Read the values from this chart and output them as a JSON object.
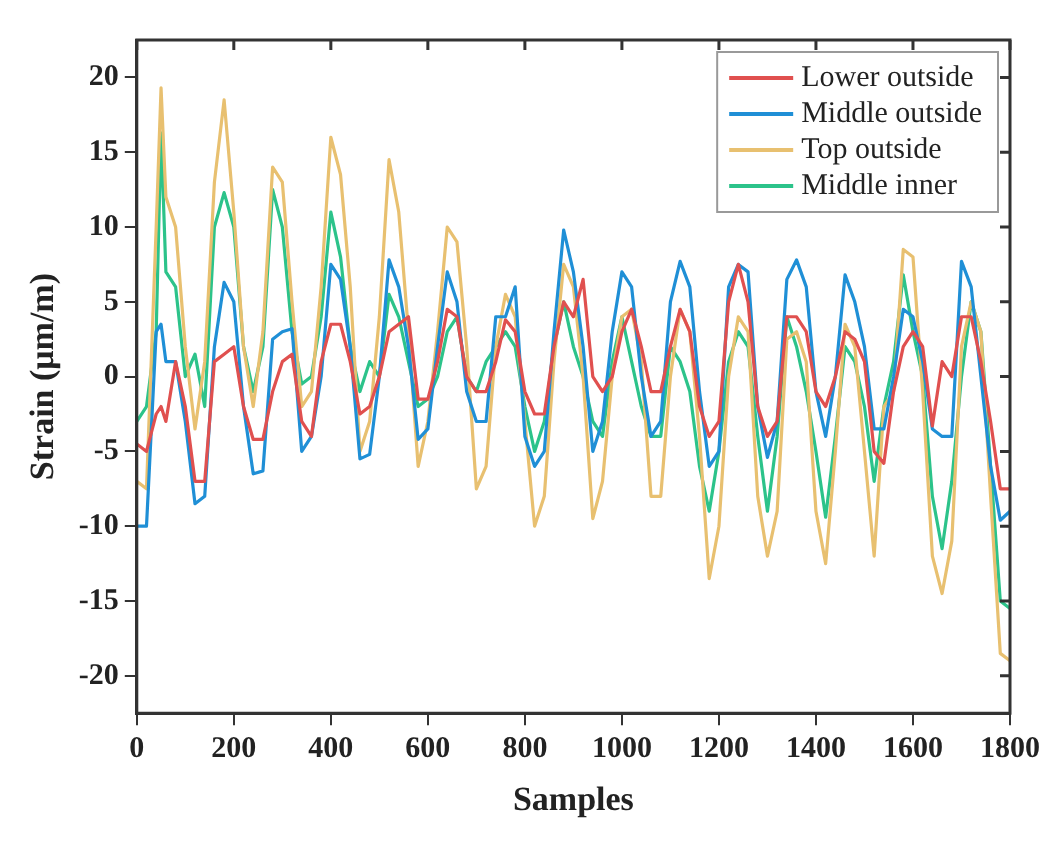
{
  "chart_data": {
    "type": "line",
    "xlabel": "Samples",
    "ylabel": "Strain (μm/m)",
    "x": [
      0,
      20,
      40,
      50,
      60,
      80,
      100,
      120,
      140,
      160,
      180,
      200,
      220,
      240,
      260,
      280,
      300,
      320,
      340,
      360,
      380,
      400,
      420,
      440,
      460,
      480,
      500,
      520,
      540,
      560,
      580,
      600,
      620,
      640,
      660,
      680,
      700,
      720,
      740,
      760,
      780,
      800,
      820,
      840,
      860,
      880,
      900,
      920,
      940,
      960,
      980,
      1000,
      1020,
      1040,
      1060,
      1080,
      1100,
      1120,
      1140,
      1160,
      1180,
      1200,
      1220,
      1240,
      1260,
      1280,
      1300,
      1320,
      1340,
      1360,
      1380,
      1400,
      1420,
      1440,
      1460,
      1480,
      1500,
      1520,
      1540,
      1560,
      1580,
      1600,
      1620,
      1640,
      1660,
      1680,
      1700,
      1720,
      1740,
      1760,
      1780,
      1800
    ],
    "series": [
      {
        "name": "Lower outside",
        "color": "#e0504f",
        "values": [
          -4.5,
          -5,
          -2.5,
          -2,
          -3,
          1,
          -2,
          -7,
          -7,
          1,
          1.5,
          2,
          -2,
          -4.2,
          -4.2,
          -1,
          1,
          1.5,
          -3,
          -4,
          1,
          3.5,
          3.5,
          1,
          -2.5,
          -2,
          0,
          3,
          3.5,
          4,
          -1.5,
          -1.5,
          1,
          4.5,
          4,
          0,
          -1,
          -1,
          1,
          3.8,
          3,
          -1,
          -2.5,
          -2.5,
          2,
          5,
          4,
          6.5,
          0,
          -1,
          0,
          3,
          4.5,
          2,
          -1,
          -1,
          2,
          4.5,
          3,
          -2,
          -4,
          -3,
          5,
          7.5,
          5,
          -2,
          -4,
          -3,
          4,
          4,
          3,
          -1,
          -2,
          0,
          3,
          2.5,
          1,
          -5,
          -5.8,
          -1,
          2,
          3,
          2,
          -3.3,
          1,
          0,
          4,
          4,
          1,
          -3,
          -7.5,
          -7.5
        ]
      },
      {
        "name": "Middle outside",
        "color": "#1f8fd6",
        "values": [
          -10,
          -10,
          3,
          3.5,
          1,
          1,
          -3,
          -8.5,
          -8,
          2,
          6.3,
          5,
          -2,
          -6.5,
          -6.3,
          2.5,
          3,
          3.2,
          -5,
          -4,
          0,
          7.5,
          6.5,
          2,
          -5.5,
          -5.2,
          0,
          7.8,
          6,
          2,
          -4.2,
          -3.5,
          2,
          7,
          5,
          -1,
          -3,
          -3,
          4,
          4,
          6,
          -4,
          -6,
          -5,
          3,
          9.8,
          7,
          2,
          -5,
          -3,
          3,
          7,
          6,
          0,
          -4,
          -3,
          5,
          7.7,
          6,
          -1,
          -6,
          -5,
          6,
          7.5,
          7,
          -2,
          -5.4,
          -3,
          6.5,
          7.8,
          6,
          -1,
          -4,
          0,
          6.8,
          5,
          2,
          -3.5,
          -3.5,
          0,
          4.5,
          4,
          1,
          -3.5,
          -4,
          -4,
          7.7,
          6,
          0,
          -6,
          -9.6,
          -9
        ]
      },
      {
        "name": "Top outside",
        "color": "#e8c070",
        "values": [
          -7,
          -7.5,
          10,
          19.3,
          12,
          10,
          2,
          -3.5,
          1,
          13,
          18.5,
          11,
          2,
          -2,
          3,
          14,
          13,
          5,
          -2,
          -1,
          6,
          16,
          13.5,
          6,
          -5,
          -3,
          4,
          14.5,
          11,
          3,
          -6,
          -3,
          3,
          10,
          9,
          2,
          -7.5,
          -6,
          2,
          5.5,
          4,
          -3,
          -10,
          -8,
          1,
          7.5,
          6,
          0,
          -9.5,
          -7,
          0,
          4,
          4.5,
          1,
          -8,
          -8,
          0,
          4.5,
          3,
          -4,
          -13.5,
          -10,
          0,
          4,
          3,
          -8,
          -12,
          -9,
          2.5,
          3,
          1,
          -9,
          -12.5,
          -5,
          3.5,
          2,
          -5,
          -12,
          -2,
          -1,
          8.5,
          8,
          -1,
          -12,
          -14.5,
          -11,
          2,
          5,
          3,
          -8,
          -18.5,
          -19
        ]
      },
      {
        "name": "Middle inner",
        "color": "#2cc38a",
        "values": [
          -3,
          -2,
          3,
          16.3,
          7,
          6,
          0,
          1.5,
          -2,
          10,
          12.3,
          10,
          2,
          -1,
          2,
          12.5,
          10,
          3,
          -0.5,
          0,
          4,
          11,
          8,
          2,
          -1,
          1,
          0,
          5.5,
          4,
          1,
          -2,
          -1.5,
          0,
          3,
          4,
          0,
          -1,
          1,
          2,
          3,
          2,
          -2,
          -5,
          -3,
          2,
          5,
          2,
          0,
          -3,
          -4,
          1,
          4,
          1,
          -2,
          -4,
          -4,
          2,
          1,
          -1,
          -6,
          -9,
          -5,
          1,
          3,
          2,
          -4,
          -9,
          -4,
          4,
          2,
          -1,
          -5,
          -9.4,
          -4,
          2,
          1,
          -2,
          -7,
          -2,
          1,
          6.8,
          3,
          0,
          -8,
          -11.5,
          -7,
          0,
          5,
          3,
          -6,
          -15,
          -15.5
        ]
      }
    ],
    "xlim": [
      0,
      1800
    ],
    "xticks": [
      0,
      200,
      400,
      600,
      800,
      1000,
      1200,
      1400,
      1600,
      1800
    ],
    "ylim": [
      -22.5,
      22.5
    ],
    "yticks": [
      -20,
      -15,
      -10,
      -5,
      0,
      5,
      10,
      15,
      20
    ],
    "grid": false,
    "legend": "top right",
    "marker": "none",
    "line_style": "solid"
  }
}
